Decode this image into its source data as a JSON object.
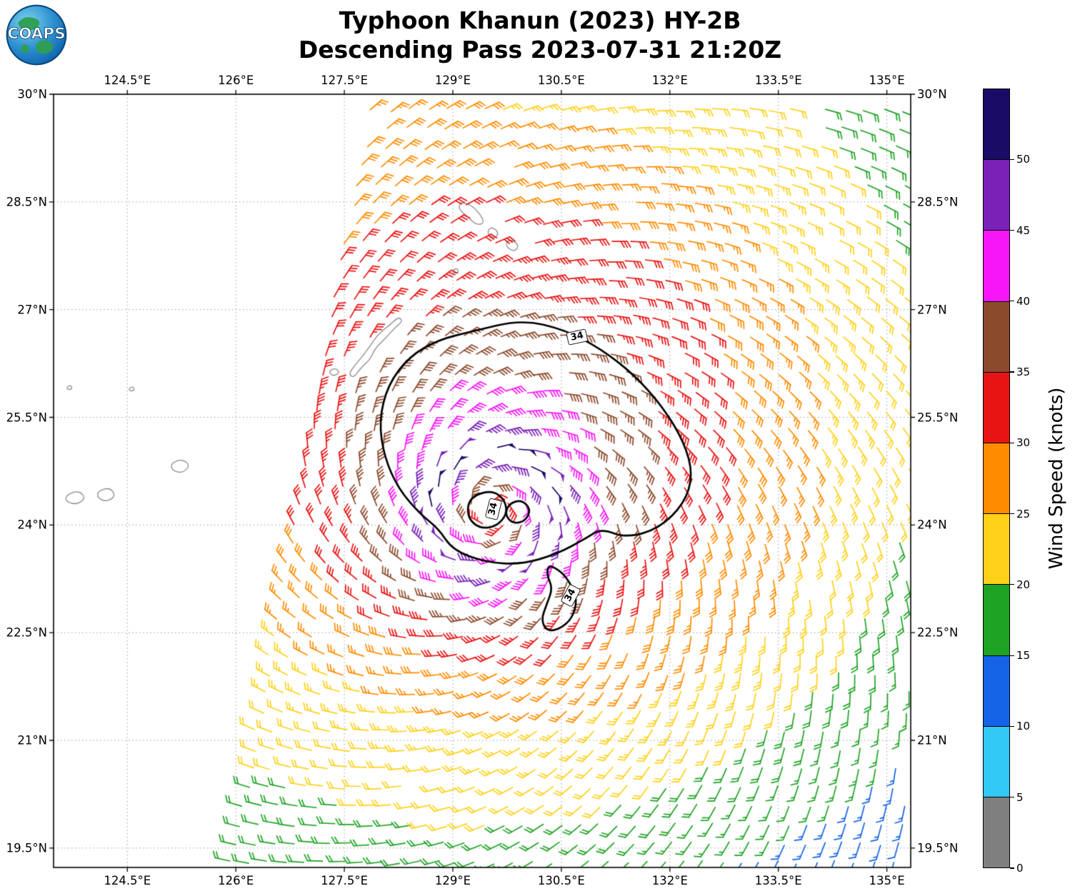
{
  "header": {
    "title_line1": "Typhoon Khanun (2023) HY-2B",
    "title_line2": "Descending Pass 2023-07-31 21:20Z",
    "logo_text": "COAPS"
  },
  "chart_data": {
    "type": "wind_barb_map",
    "title": "Typhoon Khanun (2023) HY-2B",
    "subtitle": "Descending Pass 2023-07-31 21:20Z",
    "storm_name": "Khanun",
    "satellite": "HY-2B",
    "pass": "Descending",
    "time": "2023-07-31 21:20Z",
    "axes": {
      "lon_range": [
        123.48,
        135.33
      ],
      "lat_range": [
        19.23,
        30.0
      ],
      "lon_ticks": [
        124.5,
        126,
        127.5,
        129,
        130.5,
        132,
        133.5,
        135
      ],
      "lon_tick_labels": [
        "124.5°E",
        "126°E",
        "127.5°E",
        "129°E",
        "130.5°E",
        "132°E",
        "133.5°E",
        "135°E"
      ],
      "lat_ticks": [
        19.5,
        21,
        22.5,
        24,
        25.5,
        27,
        28.5,
        30
      ],
      "lat_tick_labels": [
        "19.5°N",
        "21°N",
        "22.5°N",
        "24°N",
        "25.5°N",
        "27°N",
        "28.5°N",
        "30°N"
      ],
      "grid_style": "dotted",
      "grid_color": "#9b9b9b"
    },
    "colorbar": {
      "label": "Wind Speed (knots)",
      "tick_values": [
        0,
        5,
        10,
        15,
        20,
        25,
        30,
        35,
        40,
        45,
        50
      ],
      "tick_labels": [
        "0",
        "5",
        "10",
        "15",
        "20",
        "25",
        "30",
        "35",
        "40",
        "45",
        "50"
      ],
      "bin_max": 55,
      "colors": [
        "#7f7f7f",
        "#33c9f5",
        "#1563e6",
        "#1fa324",
        "#ffd11a",
        "#ff8c00",
        "#e81414",
        "#8c4a2d",
        "#f716f7",
        "#7a22b8",
        "#1a0b66"
      ]
    },
    "wind_field": {
      "units": "knots",
      "center": [
        129.55,
        24.2
      ],
      "vmax": 50,
      "rmax": 0.85,
      "eye_floor": 0.55,
      "decay_exp": 0.48,
      "east_extra_decay": 0.05,
      "asym_base": 2.5,
      "asym_amp": 5.0,
      "asym_phase": 1.45,
      "inflow": 0.42,
      "grid_spacing": 0.262,
      "swath_edge": {
        "lat_ref": 19.38,
        "lon_ref": 125.9,
        "slope": 0.188
      }
    },
    "contours": {
      "level_knots": 34,
      "outer": [
        [
          129.28,
          26.7
        ],
        [
          129.95,
          26.86
        ],
        [
          130.55,
          26.72
        ],
        [
          131.05,
          26.45
        ],
        [
          131.5,
          26.1
        ],
        [
          131.9,
          25.65
        ],
        [
          132.2,
          25.15
        ],
        [
          132.32,
          24.7
        ],
        [
          132.2,
          24.3
        ],
        [
          131.85,
          23.95
        ],
        [
          131.4,
          23.82
        ],
        [
          131.05,
          23.95
        ],
        [
          130.85,
          23.82
        ],
        [
          130.45,
          23.6
        ],
        [
          129.95,
          23.45
        ],
        [
          129.45,
          23.48
        ],
        [
          129.0,
          23.65
        ],
        [
          128.8,
          23.95
        ],
        [
          128.55,
          24.15
        ],
        [
          128.25,
          24.5
        ],
        [
          128.05,
          24.95
        ],
        [
          127.98,
          25.45
        ],
        [
          128.1,
          25.95
        ],
        [
          128.4,
          26.35
        ],
        [
          128.8,
          26.58
        ]
      ],
      "eye_a": [
        [
          129.3,
          24.42
        ],
        [
          129.55,
          24.48
        ],
        [
          129.72,
          24.35
        ],
        [
          129.75,
          24.15
        ],
        [
          129.6,
          23.98
        ],
        [
          129.38,
          23.95
        ],
        [
          129.22,
          24.08
        ],
        [
          129.2,
          24.28
        ]
      ],
      "eye_b": [
        [
          129.78,
          24.3
        ],
        [
          129.95,
          24.35
        ],
        [
          130.08,
          24.22
        ],
        [
          130.0,
          24.05
        ],
        [
          129.82,
          24.02
        ],
        [
          129.72,
          24.15
        ]
      ],
      "south": [
        [
          130.32,
          23.45
        ],
        [
          130.5,
          23.35
        ],
        [
          130.63,
          23.18
        ],
        [
          130.72,
          22.95
        ],
        [
          130.65,
          22.7
        ],
        [
          130.48,
          22.55
        ],
        [
          130.3,
          22.52
        ],
        [
          130.22,
          22.68
        ],
        [
          130.3,
          22.9
        ],
        [
          130.38,
          23.12
        ],
        [
          130.3,
          23.3
        ]
      ],
      "labels": [
        {
          "text": "34",
          "lon": 130.72,
          "lat": 26.62,
          "rot": -12
        },
        {
          "text": "34",
          "lon": 129.56,
          "lat": 24.22,
          "rot": -76
        },
        {
          "text": "34",
          "lon": 130.63,
          "lat": 23.02,
          "rot": -62
        }
      ]
    },
    "coastlines": [
      [
        [
          127.63,
          26.05
        ],
        [
          127.72,
          26.18
        ],
        [
          127.86,
          26.31
        ],
        [
          127.93,
          26.47
        ],
        [
          128.07,
          26.6
        ],
        [
          128.2,
          26.75
        ],
        [
          128.31,
          26.84
        ],
        [
          128.25,
          26.9
        ],
        [
          128.12,
          26.78
        ],
        [
          127.97,
          26.66
        ],
        [
          127.86,
          26.5
        ],
        [
          127.76,
          26.36
        ],
        [
          127.64,
          26.22
        ],
        [
          127.56,
          26.1
        ]
      ],
      [
        [
          129.1,
          28.5
        ],
        [
          129.25,
          28.46
        ],
        [
          129.38,
          28.33
        ],
        [
          129.44,
          28.2
        ],
        [
          129.32,
          28.18
        ],
        [
          129.2,
          28.3
        ],
        [
          129.08,
          28.4
        ]
      ],
      [
        [
          129.52,
          28.16
        ],
        [
          129.64,
          28.08
        ],
        [
          129.58,
          27.98
        ],
        [
          129.47,
          28.06
        ]
      ],
      [
        [
          129.78,
          27.99
        ],
        [
          129.92,
          27.9
        ],
        [
          129.85,
          27.8
        ],
        [
          129.72,
          27.89
        ]
      ],
      [
        [
          129.0,
          27.55
        ],
        [
          129.06,
          27.58
        ],
        [
          129.08,
          27.52
        ],
        [
          129.02,
          27.5
        ]
      ],
      [
        [
          127.28,
          26.14
        ],
        [
          127.38,
          26.19
        ],
        [
          127.44,
          26.12
        ],
        [
          127.34,
          26.07
        ]
      ],
      [
        [
          125.1,
          24.86
        ],
        [
          125.26,
          24.92
        ],
        [
          125.37,
          24.83
        ],
        [
          125.26,
          24.72
        ],
        [
          125.12,
          24.76
        ]
      ],
      [
        [
          124.1,
          24.48
        ],
        [
          124.26,
          24.52
        ],
        [
          124.34,
          24.41
        ],
        [
          124.22,
          24.32
        ],
        [
          124.08,
          24.38
        ]
      ],
      [
        [
          123.66,
          24.42
        ],
        [
          123.82,
          24.48
        ],
        [
          123.93,
          24.38
        ],
        [
          123.8,
          24.28
        ],
        [
          123.64,
          24.33
        ]
      ],
      [
        [
          123.66,
          25.92
        ],
        [
          123.72,
          25.95
        ],
        [
          123.74,
          25.9
        ],
        [
          123.68,
          25.88
        ]
      ],
      [
        [
          124.52,
          25.9
        ],
        [
          124.58,
          25.93
        ],
        [
          124.6,
          25.88
        ],
        [
          124.54,
          25.86
        ]
      ]
    ],
    "land_masks": {
      "segments": [
        {
          "a": [
            127.65,
            26.08
          ],
          "b": [
            128.3,
            26.86
          ],
          "r": 0.17
        }
      ],
      "circles": [
        {
          "c": [
            129.28,
            28.34
          ],
          "r": 0.15
        },
        {
          "c": [
            129.56,
            28.08
          ],
          "r": 0.14
        },
        {
          "c": [
            129.84,
            27.9
          ],
          "r": 0.13
        }
      ]
    }
  }
}
